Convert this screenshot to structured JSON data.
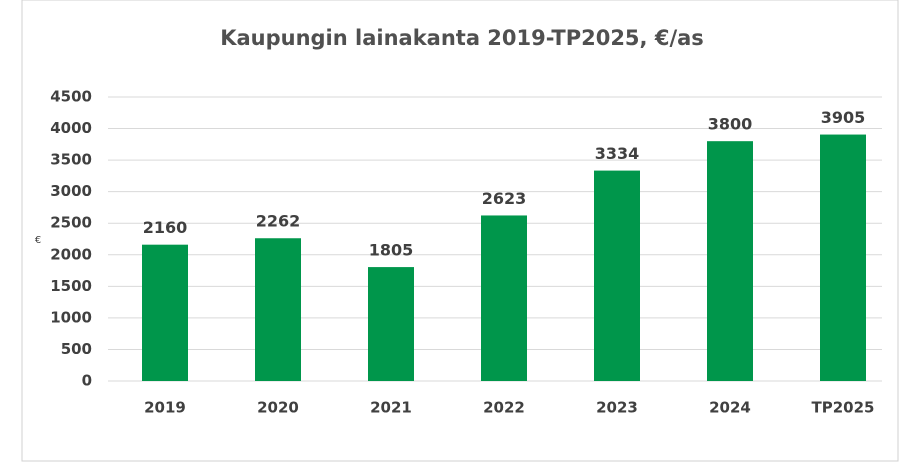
{
  "chart_data": {
    "type": "bar",
    "title": "Kaupungin lainakanta 2019-TP2025, €/as",
    "y_label": "€",
    "categories": [
      "2019",
      "2020",
      "2021",
      "2022",
      "2023",
      "2024",
      "TP2025"
    ],
    "values": [
      2160,
      2262,
      1805,
      2623,
      3334,
      3800,
      3905
    ],
    "color": "#00964b",
    "ylim": [
      0,
      4500
    ],
    "yticks": [
      0,
      500,
      1000,
      1500,
      2000,
      2500,
      3000,
      3500,
      4000,
      4500
    ],
    "grid": true
  }
}
